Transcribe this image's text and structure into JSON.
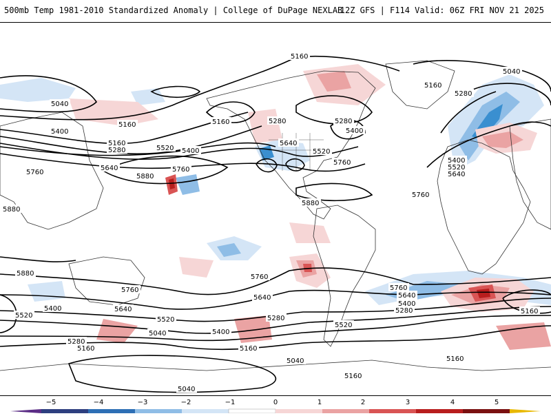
{
  "header": {
    "title_left": "500mb Temp 1981-2010 Standardized Anomaly | College of DuPage NEXLAB",
    "title_right": "12Z GFS | F114 Valid: 06Z FRI NOV 21 2025"
  },
  "colors": {
    "neg5": "#5b2d86",
    "neg4": "#2d3f7f",
    "neg3": "#3a8fd0",
    "neg2": "#8fbde6",
    "neg1": "#d4e5f6",
    "zero_neg": "#ffffff",
    "zero_pos": "#ffffff",
    "pos1": "#f6d6d6",
    "pos2": "#eaa3a3",
    "pos3": "#d95454",
    "pos4": "#b81e1e",
    "pos5": "#e8b800",
    "contour": "#000000",
    "coastline": "#333333"
  },
  "colorbar": {
    "ticks": [
      "−5",
      "−4",
      "−3",
      "−2",
      "−1",
      "0",
      "1",
      "2",
      "3",
      "4",
      "5"
    ]
  },
  "contour_labels": [
    {
      "id": "l5160-alaska",
      "text": "5160"
    },
    {
      "id": "l5160-arctic",
      "text": "5160"
    },
    {
      "id": "l5040-arctic",
      "text": "5040"
    },
    {
      "id": "l5160-greenland",
      "text": "5160"
    },
    {
      "id": "l5280-greenland",
      "text": "5280"
    },
    {
      "id": "l5040-pac",
      "text": "5040"
    },
    {
      "id": "l5400-pac",
      "text": "5400"
    },
    {
      "id": "l5160-pac",
      "text": "5160"
    },
    {
      "id": "l5280-pac",
      "text": "5280"
    },
    {
      "id": "l5520-pac",
      "text": "5520"
    },
    {
      "id": "l5400-pac2",
      "text": "5400"
    },
    {
      "id": "l5640-pac",
      "text": "5640"
    },
    {
      "id": "l5760-pac",
      "text": "5760"
    },
    {
      "id": "l5760-west",
      "text": "5760"
    },
    {
      "id": "l5880-pac",
      "text": "5880"
    },
    {
      "id": "l5280-can",
      "text": "5280"
    },
    {
      "id": "l5640-us",
      "text": "5640"
    },
    {
      "id": "l5520-us",
      "text": "5520"
    },
    {
      "id": "l5760-us",
      "text": "5760"
    },
    {
      "id": "l5880-us",
      "text": "5880"
    },
    {
      "id": "l5280-hud",
      "text": "5280"
    },
    {
      "id": "l5400-hud",
      "text": "5400"
    },
    {
      "id": "l5400-eu",
      "text": "5400"
    },
    {
      "id": "l5520-eu",
      "text": "5520"
    },
    {
      "id": "l5640-eu",
      "text": "5640"
    },
    {
      "id": "l5760-atl",
      "text": "5760"
    },
    {
      "id": "l5880-west",
      "text": "5880"
    },
    {
      "id": "l5880-sw",
      "text": "5880"
    },
    {
      "id": "l5760-sp",
      "text": "5760"
    },
    {
      "id": "l5760-sp2",
      "text": "5760"
    },
    {
      "id": "l5640-sp",
      "text": "5640"
    },
    {
      "id": "l5640-sp2",
      "text": "5640"
    },
    {
      "id": "l5520-sp",
      "text": "5520"
    },
    {
      "id": "l5400-sp",
      "text": "5400"
    },
    {
      "id": "l5280-sp",
      "text": "5280"
    },
    {
      "id": "l5160-sp",
      "text": "5160"
    },
    {
      "id": "l5040-sp",
      "text": "5040"
    },
    {
      "id": "l5520-sw",
      "text": "5520"
    },
    {
      "id": "l5400-sw",
      "text": "5400"
    },
    {
      "id": "l5280-sp2",
      "text": "5280"
    },
    {
      "id": "l5160-sp2",
      "text": "5160"
    },
    {
      "id": "l5040-sp2",
      "text": "5040"
    },
    {
      "id": "l5040-ant",
      "text": "5040"
    },
    {
      "id": "l5160-sa",
      "text": "5160"
    },
    {
      "id": "l5520-sa",
      "text": "5520"
    },
    {
      "id": "l5760-sa",
      "text": "5760"
    },
    {
      "id": "l5640-sa",
      "text": "5640"
    },
    {
      "id": "l5400-sa",
      "text": "5400"
    },
    {
      "id": "l5280-sa",
      "text": "5280"
    },
    {
      "id": "l5160-sio",
      "text": "5160"
    },
    {
      "id": "l5160-sio2",
      "text": "5160"
    },
    {
      "id": "l5040-sa",
      "text": "5040"
    },
    {
      "id": "l5160-sa2",
      "text": "5160"
    }
  ]
}
